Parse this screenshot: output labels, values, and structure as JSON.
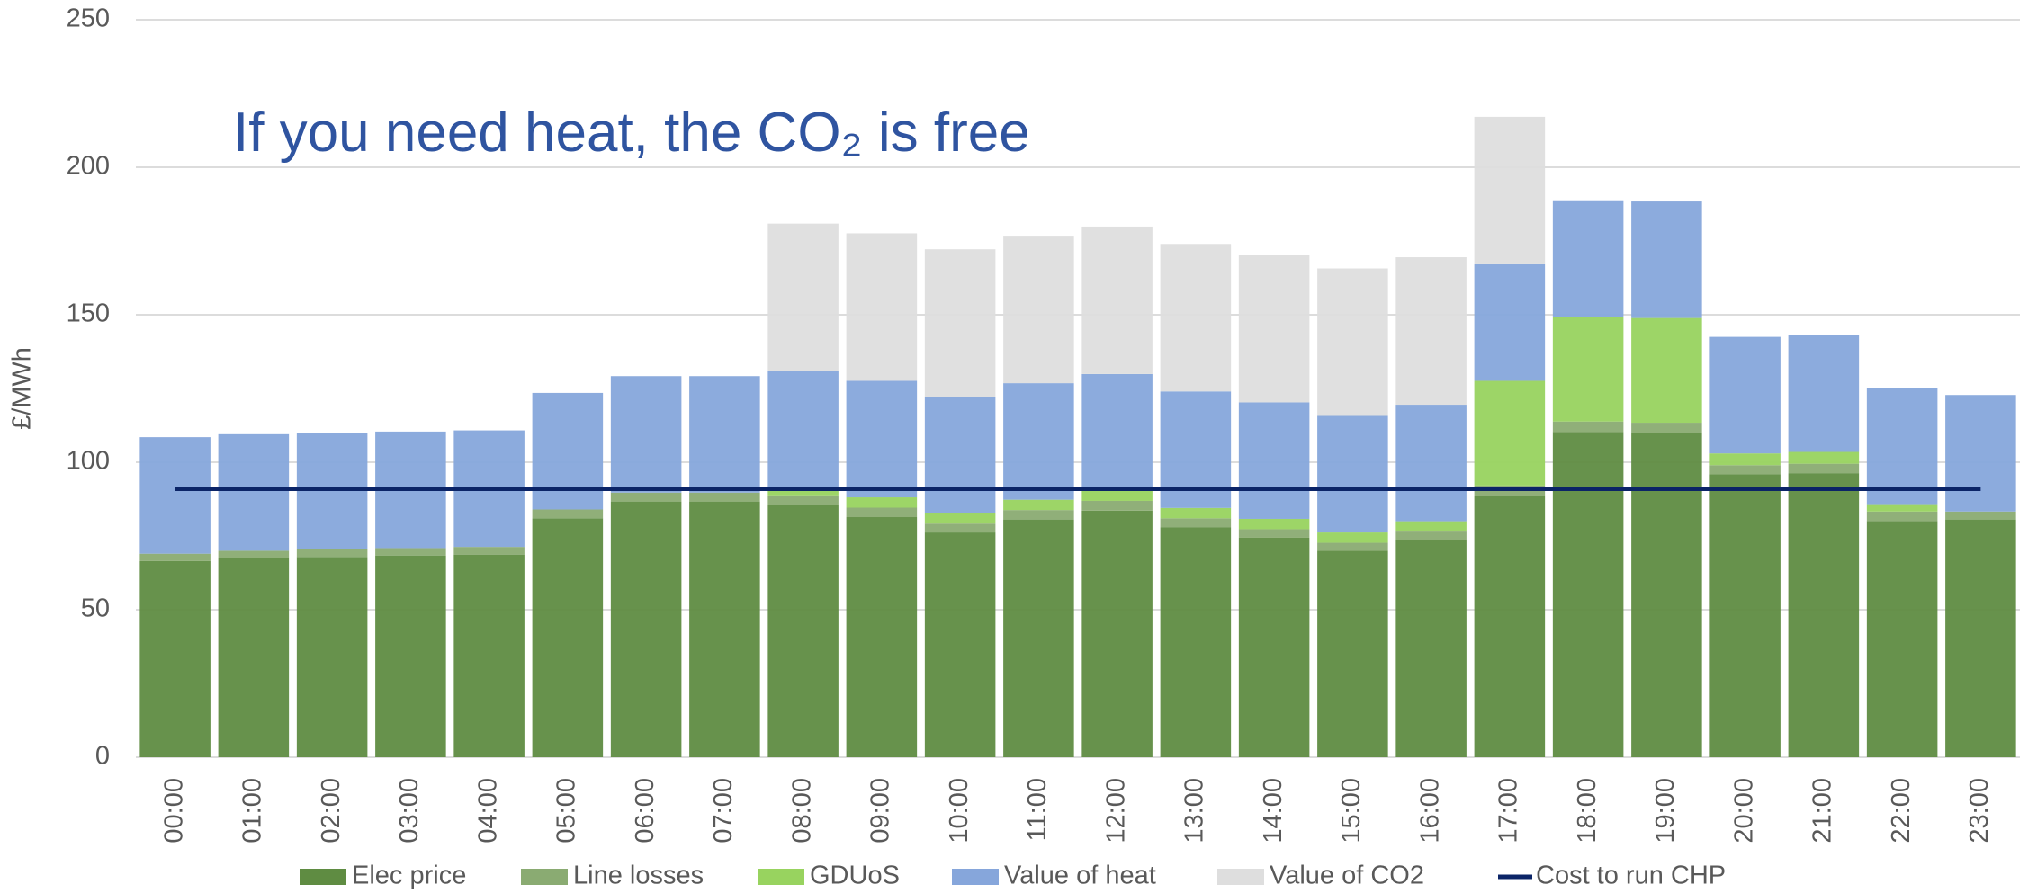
{
  "chart_data": {
    "type": "bar",
    "stacked": true,
    "title": "If you need heat, the CO₂ is free",
    "y_label": "£/MWh",
    "categories": [
      "00:00",
      "01:00",
      "02:00",
      "03:00",
      "04:00",
      "05:00",
      "06:00",
      "07:00",
      "08:00",
      "09:00",
      "10:00",
      "11:00",
      "12:00",
      "13:00",
      "14:00",
      "15:00",
      "16:00",
      "17:00",
      "18:00",
      "19:00",
      "20:00",
      "21:00",
      "22:00",
      "23:00"
    ],
    "series": [
      {
        "name": "Elec price",
        "color": "#5f8c42",
        "values": [
          66.5,
          67.4,
          67.9,
          68.3,
          68.7,
          81,
          86.7,
          86.7,
          85.4,
          81.4,
          76.2,
          80.6,
          83.6,
          77.9,
          74.4,
          70,
          73.6,
          88.5,
          110.3,
          109.9,
          95.9,
          96.3,
          80.1,
          80.6
        ]
      },
      {
        "name": "Line losses",
        "color": "#8aab72",
        "values": [
          2.5,
          2.6,
          2.6,
          2.6,
          2.6,
          3,
          3,
          3,
          3.4,
          3.2,
          3,
          3.2,
          3.3,
          3.1,
          2.9,
          2.7,
          2.9,
          3.6,
          3.5,
          3.5,
          3.1,
          3.2,
          3.2,
          2.7
        ]
      },
      {
        "name": "GDUoS",
        "color": "#98d35f",
        "values": [
          0,
          0,
          0,
          0,
          0,
          0,
          0,
          0,
          2.6,
          3.5,
          3.5,
          3.5,
          3.5,
          3.5,
          3.5,
          3.5,
          3.5,
          35.5,
          35.5,
          35.5,
          4,
          4,
          2.5,
          0
        ]
      },
      {
        "name": "Value of heat",
        "color": "#86a6db",
        "values": [
          39.5,
          39.5,
          39.5,
          39.5,
          39.5,
          39.5,
          39.5,
          39.5,
          39.5,
          39.5,
          39.5,
          39.5,
          39.5,
          39.5,
          39.5,
          39.5,
          39.5,
          39.5,
          39.5,
          39.5,
          39.5,
          39.5,
          39.5,
          39.5
        ]
      },
      {
        "name": "Value of CO2",
        "color": "#dedede",
        "values": [
          0,
          0,
          0,
          0,
          0,
          0,
          0,
          0,
          50,
          50,
          50,
          50,
          50,
          50,
          50,
          50,
          50,
          50,
          0,
          0,
          0,
          0,
          0,
          0
        ]
      },
      {
        "name": "Cost to run CHP",
        "type": "line",
        "color": "#0b2467",
        "values": [
          91,
          91,
          91,
          91,
          91,
          91,
          91,
          91,
          91,
          91,
          91,
          91,
          91,
          91,
          91,
          91,
          91,
          91,
          91,
          91,
          91,
          91,
          91,
          91
        ]
      }
    ],
    "ylim": [
      0,
      250
    ],
    "yticks": [
      0,
      50,
      100,
      150,
      200,
      250
    ],
    "grid": true,
    "legend": "bottom"
  }
}
